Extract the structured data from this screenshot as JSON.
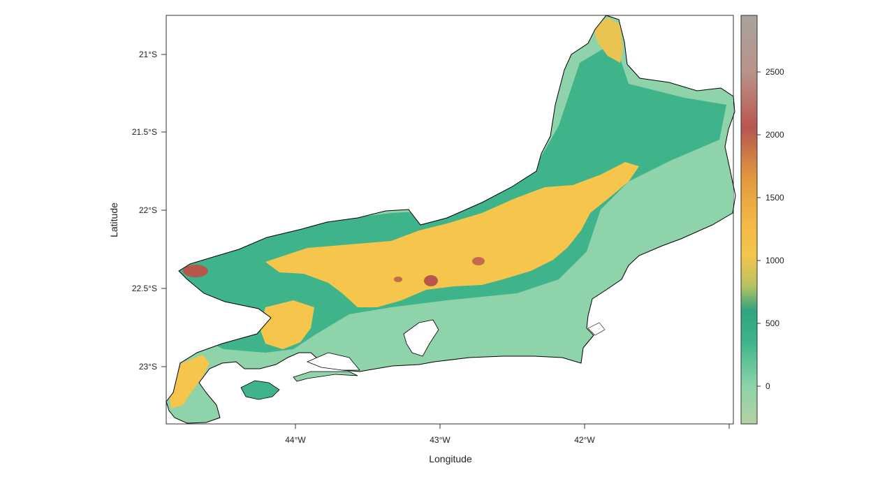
{
  "map": {
    "xlabel": "Longitude",
    "ylabel": "Latitude",
    "x_ticks": [
      "44°W",
      "43°W",
      "42°W"
    ],
    "y_ticks": [
      "21°S",
      "21.5°S",
      "22°S",
      "22.5°S",
      "23°S"
    ],
    "extent": {
      "lon": [
        -44.9,
        -41.0
      ],
      "lat": [
        -23.37,
        -20.76
      ]
    }
  },
  "colorbar": {
    "range": [
      -300,
      2950
    ],
    "ticks": [
      "2500",
      "2000",
      "1500",
      "1000",
      "500",
      "0"
    ],
    "stops": [
      {
        "value": -300,
        "color": "#b3d1a4"
      },
      {
        "value": 0,
        "color": "#8ed3a9"
      },
      {
        "value": 350,
        "color": "#3fb48a"
      },
      {
        "value": 600,
        "color": "#2fa47f"
      },
      {
        "value": 800,
        "color": "#b8c260"
      },
      {
        "value": 1050,
        "color": "#f5c54c"
      },
      {
        "value": 1300,
        "color": "#f3b845"
      },
      {
        "value": 1650,
        "color": "#e29a3e"
      },
      {
        "value": 2050,
        "color": "#b8564f"
      },
      {
        "value": 2500,
        "color": "#b9938a"
      },
      {
        "value": 2950,
        "color": "#a8a39e"
      }
    ]
  },
  "colors": {
    "lowland": "#8ed3a9",
    "hills": "#3fb48a",
    "plateau": "#f5c54c",
    "peaks": "#c06a4f",
    "coast_outline": "#000000"
  }
}
